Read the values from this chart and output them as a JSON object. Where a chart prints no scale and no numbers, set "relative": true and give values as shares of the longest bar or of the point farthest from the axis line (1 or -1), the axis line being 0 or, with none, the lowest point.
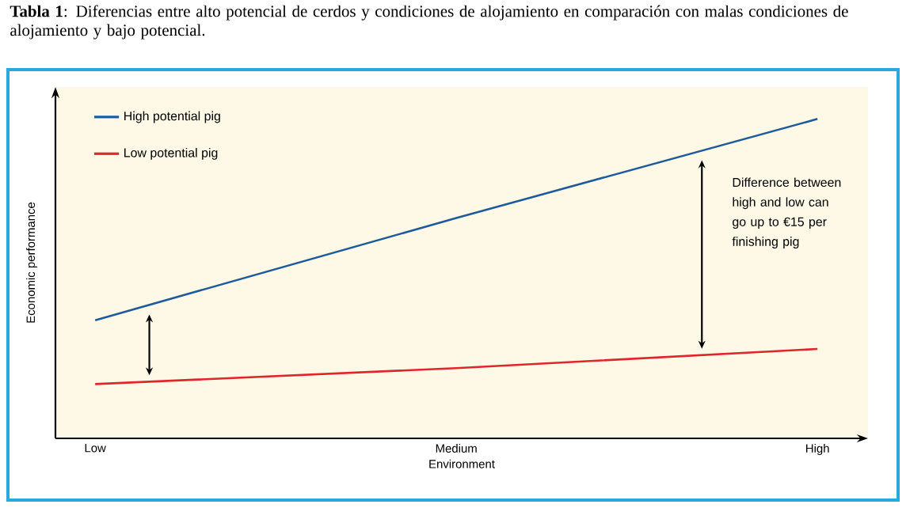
{
  "chart_data": {
    "type": "line",
    "title": "**Tabla 1**: Diferencias entre alto potencial de cerdos y condiciones de alojamiento en comparación con malas condiciones de alojamiento y bajo potencial.",
    "xlabel": "Environment",
    "ylabel": "Economic performance",
    "categories": [
      "Low",
      "Medium",
      "High"
    ],
    "relative": true,
    "tick_labels": "x",
    "legend": "top left",
    "grid": false,
    "marker": "none",
    "line_style": "solid",
    "series": [
      {
        "name": "High potential pig",
        "color": "#1f5a9c",
        "values": [
          0.37,
          0.69,
          1
        ]
      },
      {
        "name": "Low potential pig",
        "color": "#e0262b",
        "values": [
          0.17,
          0.22,
          0.28
        ]
      }
    ],
    "annotations": [
      "Difference between high and low can go up to €15 per finishing pig"
    ]
  }
}
